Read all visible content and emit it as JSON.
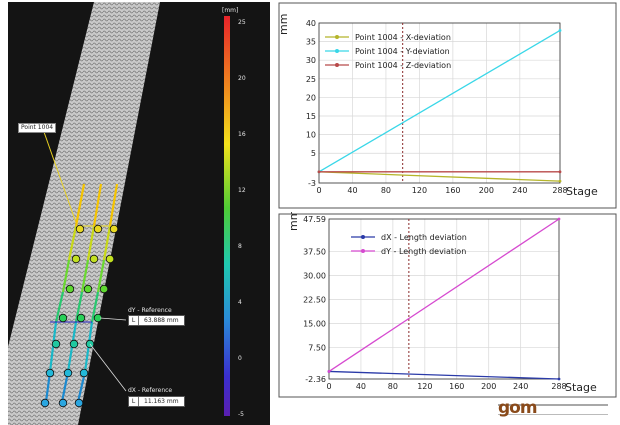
{
  "colorbar": {
    "unit": "[mm]",
    "ticks": [
      "25",
      "20",
      "16",
      "12",
      "8",
      "4",
      "0",
      "-5"
    ]
  },
  "annotations": {
    "point_label": "Point 1004",
    "dy_title": "dY - Reference",
    "dy_prefix": "L",
    "dy_value": "63.888 mm",
    "dx_title": "dX - Reference",
    "dx_prefix": "L",
    "dx_value": "11.163 mm"
  },
  "chart_data": [
    {
      "type": "line",
      "ylabel": "mm",
      "xlabel": "Stage",
      "xlim": [
        0,
        288
      ],
      "ylim": [
        -3,
        40
      ],
      "xticks": [
        "0",
        "40",
        "80",
        "120",
        "160",
        "200",
        "240",
        "288"
      ],
      "yticks": [
        "40",
        "35",
        "30",
        "25",
        "20",
        "15",
        "10",
        "5",
        "-3"
      ],
      "ytick_values": [
        40,
        35,
        30,
        25,
        20,
        15,
        10,
        5,
        -3
      ],
      "marker_stage": 100,
      "legend_position": "top-left",
      "series": [
        {
          "name": "Point 1004 - X-deviation",
          "color": "#b5b52a",
          "x": [
            0,
            288
          ],
          "y": [
            0,
            -2.5
          ]
        },
        {
          "name": "Point 1004 - Y-deviation",
          "color": "#39d7e8",
          "x": [
            0,
            288
          ],
          "y": [
            0,
            38
          ]
        },
        {
          "name": "Point 1004 - Z-deviation",
          "color": "#b84a4a",
          "x": [
            0,
            288
          ],
          "y": [
            0,
            0
          ]
        }
      ]
    },
    {
      "type": "line",
      "ylabel": "mm",
      "xlabel": "Stage",
      "xlim": [
        0,
        288
      ],
      "ylim": [
        -2.36,
        47.59
      ],
      "xticks": [
        "0",
        "40",
        "80",
        "120",
        "160",
        "200",
        "240",
        "288"
      ],
      "yticks": [
        "47.59",
        "37.50",
        "30.00",
        "22.50",
        "15.00",
        "7.50",
        "-2.36"
      ],
      "ytick_values": [
        47.59,
        37.5,
        30,
        22.5,
        15,
        7.5,
        -2.36
      ],
      "marker_stage": 100,
      "legend_position": "top-left",
      "series": [
        {
          "name": "dX - Length deviation",
          "color": "#2a3aa8",
          "x": [
            0,
            288
          ],
          "y": [
            0,
            -2.36
          ]
        },
        {
          "name": "dY - Length deviation",
          "color": "#d64ad0",
          "x": [
            0,
            288
          ],
          "y": [
            0,
            47.59
          ]
        }
      ]
    }
  ],
  "logo": {
    "text": "gom"
  }
}
